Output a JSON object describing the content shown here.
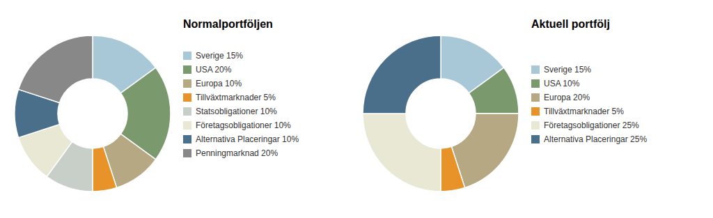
{
  "chart_data": [
    {
      "type": "pie",
      "title": "Normalportföljen",
      "categories": [
        "Sverige 15%",
        "USA 20%",
        "Europa 10%",
        "Tillväxtmarknader 5%",
        "Statsobligationer 10%",
        "Företagsobligationer 10%",
        "Alternativa Placeringar 10%",
        "Penningmarknad 20%"
      ],
      "values": [
        15,
        20,
        10,
        5,
        10,
        10,
        10,
        20
      ],
      "colors": [
        "#a8c8d8",
        "#7a9a6e",
        "#b5a882",
        "#e8922a",
        "#c8cfc8",
        "#e8e8d4",
        "#4a6f8a",
        "#888888"
      ],
      "legend": "right"
    },
    {
      "type": "pie",
      "title": "Aktuell portfölj",
      "categories": [
        "Sverige 15%",
        "USA 10%",
        "Europa 20%",
        "Tillväxtmarknader 5%",
        "Företagsobligationer 25%",
        "Alternativa Placeringar 25%"
      ],
      "values": [
        15,
        10,
        20,
        5,
        25,
        25
      ],
      "colors": [
        "#a8c8d8",
        "#7a9a6e",
        "#b5a882",
        "#e8922a",
        "#e8e8d4",
        "#4a6f8a"
      ],
      "legend": "right"
    }
  ]
}
